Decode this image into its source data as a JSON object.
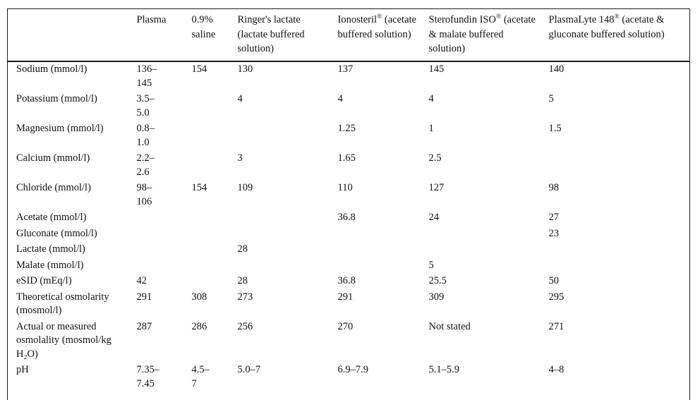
{
  "page": {
    "background_color": "#ffffff",
    "text_color": "#111111",
    "rule_color": "#1a1a1a"
  },
  "table": {
    "registered_mark": "®",
    "row_header_label": "",
    "columns": [
      {
        "name": "Plasma",
        "registered": false,
        "suffix": ""
      },
      {
        "name": "0.9% saline",
        "registered": false,
        "suffix": ""
      },
      {
        "name": "Ringer's lactate",
        "registered": false,
        "suffix": "(lactate buffered solution)"
      },
      {
        "name": "Ionosteril",
        "registered": true,
        "suffix": "(acetate buffered solution)"
      },
      {
        "name": "Sterofundin ISO",
        "registered": true,
        "suffix": "(acetate & malate buffered solution)"
      },
      {
        "name": "PlasmaLyte 148",
        "registered": true,
        "suffix": "(acetate & gluconate buffered solution)"
      }
    ],
    "rows": [
      {
        "label": "Sodium (mmol/l)",
        "values": [
          "136–\n145",
          "154",
          "130",
          "137",
          "145",
          "140"
        ]
      },
      {
        "label": "Potassium (mmol/l)",
        "values": [
          "3.5–\n5.0",
          "",
          "4",
          "4",
          "4",
          "5"
        ]
      },
      {
        "label": "Magnesium (mmol/l)",
        "values": [
          "0.8–\n1.0",
          "",
          "",
          "1.25",
          "1",
          "1.5"
        ]
      },
      {
        "label": "Calcium (mmol/l)",
        "values": [
          "2.2–\n2.6",
          "",
          "3",
          "1.65",
          "2.5",
          ""
        ]
      },
      {
        "label": "Chloride (mmol/l)",
        "values": [
          "98–\n106",
          "154",
          "109",
          "110",
          "127",
          "98"
        ]
      },
      {
        "label": "Acetate (mmol/l)",
        "values": [
          "",
          "",
          "",
          "36.8",
          "24",
          "27"
        ]
      },
      {
        "label": "Gluconate (mmol/l)",
        "values": [
          "",
          "",
          "",
          "",
          "",
          "23"
        ]
      },
      {
        "label": "Lactate (mmol/l)",
        "values": [
          "",
          "",
          "28",
          "",
          "",
          ""
        ]
      },
      {
        "label": "Malate (mmol/l)",
        "values": [
          "",
          "",
          "",
          "",
          "5",
          ""
        ]
      },
      {
        "label": "eSID (mEq/l)",
        "values": [
          "42",
          "",
          "28",
          "36.8",
          "25.5",
          "50"
        ]
      },
      {
        "label": "Theoretical osmolarity (mosmol/l)",
        "values": [
          "291",
          "308",
          "273",
          "291",
          "309",
          "295"
        ]
      },
      {
        "label": "Actual or measured osmolality (mosmol/kg H₂O)",
        "values": [
          "287",
          "286",
          "256",
          "270",
          "Not stated",
          "271"
        ]
      },
      {
        "label": "pH",
        "values": [
          "7.35–\n7.45",
          "4.5–\n7",
          "5.0–7",
          "6.9–7.9",
          "5.1–5.9",
          "4–8"
        ]
      }
    ]
  }
}
